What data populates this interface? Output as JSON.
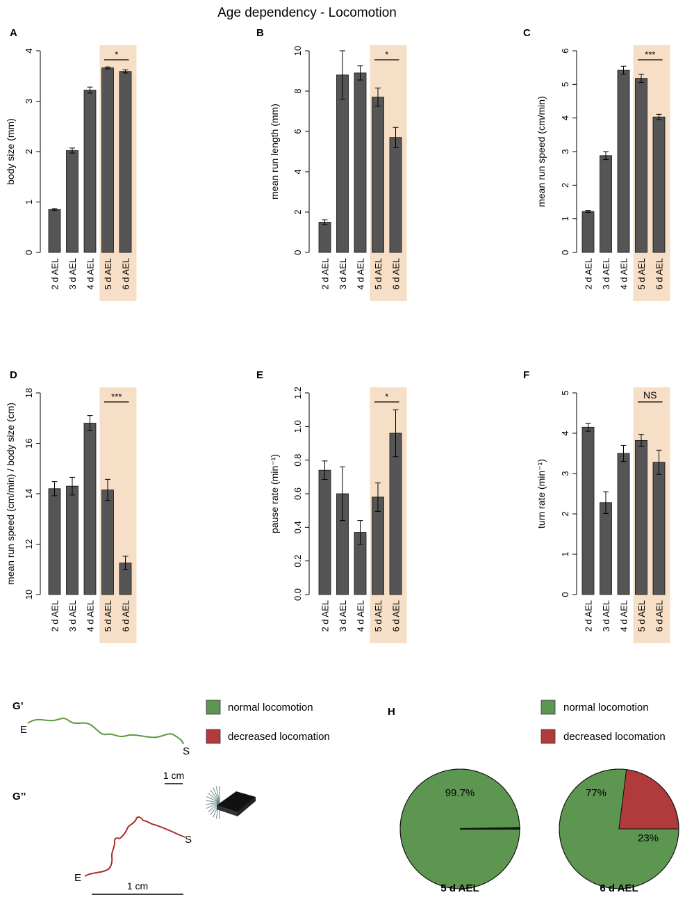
{
  "figure_title": "Age dependency - Locomotion",
  "colors": {
    "bar": "#555555",
    "highlight": "#f6dfc6",
    "green": "#5c9650",
    "red": "#b03a3c",
    "trace_green": "#5a9a40",
    "trace_red": "#a8302c"
  },
  "chart_data": [
    {
      "panel": "A",
      "type": "bar",
      "ylabel": "body size (mm)",
      "categories": [
        "2 d AEL",
        "3 d AEL",
        "4 d AEL",
        "5 d AEL",
        "6 d AEL"
      ],
      "values": [
        0.85,
        2.02,
        3.22,
        3.66,
        3.59
      ],
      "errors": [
        0.02,
        0.05,
        0.06,
        0.02,
        0.03
      ],
      "ylim": [
        0,
        4
      ],
      "ticks": [
        "0",
        "1",
        "2",
        "3",
        "4"
      ],
      "highlight": "5 d AEL – 6 d AEL",
      "significance": "*"
    },
    {
      "panel": "B",
      "type": "bar",
      "ylabel": "mean run length (mm)",
      "categories": [
        "2 d AEL",
        "3 d AEL",
        "4 d AEL",
        "5 d AEL",
        "6 d AEL"
      ],
      "values": [
        1.5,
        8.8,
        8.9,
        7.7,
        5.7
      ],
      "errors": [
        0.12,
        1.2,
        0.35,
        0.45,
        0.5
      ],
      "ylim": [
        0,
        10
      ],
      "ticks": [
        "0",
        "2",
        "4",
        "6",
        "8",
        "10"
      ],
      "highlight": "5 d AEL – 6 d AEL",
      "significance": "*"
    },
    {
      "panel": "C",
      "type": "bar",
      "ylabel": "mean run speed (cm/min)",
      "categories": [
        "2 d AEL",
        "3 d AEL",
        "4 d AEL",
        "5 d AEL",
        "6 d AEL"
      ],
      "values": [
        1.22,
        2.88,
        5.42,
        5.18,
        4.03
      ],
      "errors": [
        0.03,
        0.12,
        0.12,
        0.12,
        0.08
      ],
      "ylim": [
        0,
        6
      ],
      "ticks": [
        "0",
        "1",
        "2",
        "3",
        "4",
        "5",
        "6"
      ],
      "highlight": "5 d AEL – 6 d AEL",
      "significance": "***"
    },
    {
      "panel": "D",
      "type": "bar",
      "ylabel": "mean run speed (cm/min) / body size (cm)",
      "categories": [
        "2 d AEL",
        "3 d AEL",
        "4 d AEL",
        "5 d AEL",
        "6 d AEL"
      ],
      "values": [
        14.2,
        14.3,
        16.8,
        14.15,
        11.25
      ],
      "errors": [
        0.28,
        0.35,
        0.3,
        0.42,
        0.27
      ],
      "ylim": [
        10,
        18
      ],
      "ticks": [
        "10",
        "12",
        "14",
        "16",
        "18"
      ],
      "highlight": "5 d AEL – 6 d AEL",
      "significance": "***"
    },
    {
      "panel": "E",
      "type": "bar",
      "ylabel": "pause rate (min⁻¹)",
      "categories": [
        "2 d AEL",
        "3 d AEL",
        "4 d AEL",
        "5 d AEL",
        "6 d AEL"
      ],
      "values": [
        0.74,
        0.6,
        0.37,
        0.58,
        0.96
      ],
      "errors": [
        0.055,
        0.16,
        0.07,
        0.085,
        0.14
      ],
      "ylim": [
        0,
        1.2
      ],
      "ticks": [
        "0.0",
        "0.2",
        "0.4",
        "0.6",
        "0.8",
        "1.0",
        "1.2"
      ],
      "highlight": "5 d AEL – 6 d AEL",
      "significance": "*"
    },
    {
      "panel": "F",
      "type": "bar",
      "ylabel": "turn rate (min⁻¹)",
      "categories": [
        "2 d AEL",
        "3 d AEL",
        "4 d AEL",
        "5 d AEL",
        "6 d AEL"
      ],
      "values": [
        4.15,
        2.28,
        3.5,
        3.82,
        3.28
      ],
      "errors": [
        0.1,
        0.27,
        0.2,
        0.15,
        0.3
      ],
      "ylim": [
        0,
        5
      ],
      "ticks": [
        "0",
        "1",
        "2",
        "3",
        "4",
        "5"
      ],
      "highlight": "5 d AEL – 6 d AEL",
      "significance": "NS"
    },
    {
      "panel": "H",
      "type": "pie",
      "title": "5 d AEL",
      "slices": [
        {
          "label": "normal locomotion",
          "value": 99.7,
          "text": "99.7%"
        },
        {
          "label": "decreased locomation",
          "value": 0.3,
          "text": ""
        }
      ]
    },
    {
      "panel": "H",
      "type": "pie",
      "title": "6 d AEL",
      "slices": [
        {
          "label": "normal locomotion",
          "value": 77,
          "text": "77%"
        },
        {
          "label": "decreased locomation",
          "value": 23,
          "text": "23%"
        }
      ]
    }
  ],
  "panel_G": {
    "label_g1": "G’",
    "label_g2": "G’’",
    "end_label": "E",
    "start_label": "S",
    "scale_g1": "1 cm",
    "scale_g2": "1 cm"
  },
  "panel_H": {
    "label": "H"
  },
  "legends": {
    "g": [
      {
        "label": "normal locomotion"
      },
      {
        "label": "decreased locomation"
      }
    ],
    "h": [
      {
        "label": "normal locomotion"
      },
      {
        "label": "decreased locomation"
      }
    ]
  }
}
